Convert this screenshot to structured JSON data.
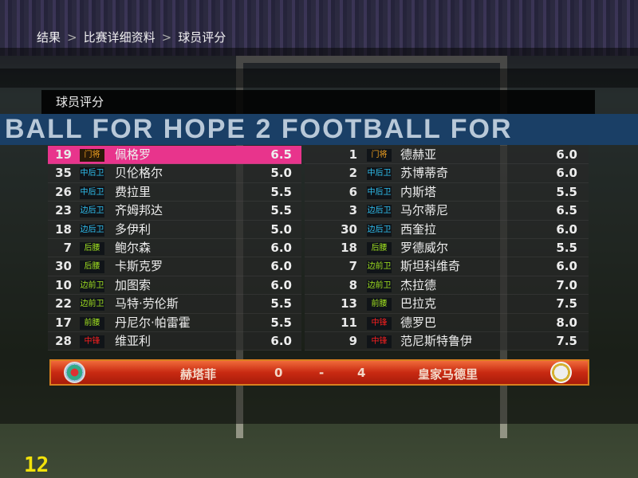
{
  "breadcrumb": [
    "结果",
    "比赛详细资料",
    "球员评分"
  ],
  "breadcrumb_sep": ">",
  "panel_title": "球员评分",
  "banner_text": "BALL FOR HOPE 2  FOOTBALL FOR",
  "home_players": [
    {
      "num": "19",
      "pos": "门将",
      "name": "佩格罗",
      "rating": "6.5",
      "selected": true
    },
    {
      "num": "35",
      "pos": "中后卫",
      "name": "贝伦格尔",
      "rating": "5.0"
    },
    {
      "num": "26",
      "pos": "中后卫",
      "name": "费拉里",
      "rating": "5.5"
    },
    {
      "num": "23",
      "pos": "边后卫",
      "name": "齐姆邦达",
      "rating": "5.5"
    },
    {
      "num": "18",
      "pos": "边后卫",
      "name": "多伊利",
      "rating": "5.0"
    },
    {
      "num": "7",
      "pos": "后腰",
      "name": "鲍尔森",
      "rating": "6.0"
    },
    {
      "num": "30",
      "pos": "后腰",
      "name": "卡斯克罗",
      "rating": "6.0"
    },
    {
      "num": "10",
      "pos": "边前卫",
      "name": "加图索",
      "rating": "6.0"
    },
    {
      "num": "22",
      "pos": "边前卫",
      "name": "马特·劳伦斯",
      "rating": "5.5"
    },
    {
      "num": "17",
      "pos": "前腰",
      "name": "丹尼尔·帕雷霍",
      "rating": "5.5"
    },
    {
      "num": "28",
      "pos": "中锋",
      "name": "维亚利",
      "rating": "6.0"
    }
  ],
  "away_players": [
    {
      "num": "1",
      "pos": "门将",
      "name": "德赫亚",
      "rating": "6.0"
    },
    {
      "num": "2",
      "pos": "中后卫",
      "name": "苏博蒂奇",
      "rating": "6.0"
    },
    {
      "num": "6",
      "pos": "中后卫",
      "name": "内斯塔",
      "rating": "5.5"
    },
    {
      "num": "3",
      "pos": "边后卫",
      "name": "马尔蒂尼",
      "rating": "6.5"
    },
    {
      "num": "30",
      "pos": "边后卫",
      "name": "西奎拉",
      "rating": "6.0"
    },
    {
      "num": "18",
      "pos": "后腰",
      "name": "罗德威尔",
      "rating": "5.5"
    },
    {
      "num": "7",
      "pos": "边前卫",
      "name": "斯坦科维奇",
      "rating": "6.0"
    },
    {
      "num": "8",
      "pos": "边前卫",
      "name": "杰拉德",
      "rating": "7.0"
    },
    {
      "num": "13",
      "pos": "前腰",
      "name": "巴拉克",
      "rating": "7.5"
    },
    {
      "num": "11",
      "pos": "中锋",
      "name": "德罗巴",
      "rating": "8.0"
    },
    {
      "num": "9",
      "pos": "中锋",
      "name": "范尼斯特鲁伊",
      "rating": "7.5"
    }
  ],
  "pos_colors": {
    "门将": "#f0a020",
    "中后卫": "#30c0f0",
    "边后卫": "#30c0f0",
    "后腰": "#a0e020",
    "边前卫": "#a0e020",
    "前腰": "#a0e020",
    "中锋": "#ff2020"
  },
  "score": {
    "home_team": "赫塔菲",
    "home_goals": "0",
    "dash": "-",
    "away_goals": "4",
    "away_team": "皇家马德里"
  },
  "colors": {
    "selected_row": "#e8348c",
    "score_bar": "#c82a12"
  },
  "frame_counter": "12"
}
